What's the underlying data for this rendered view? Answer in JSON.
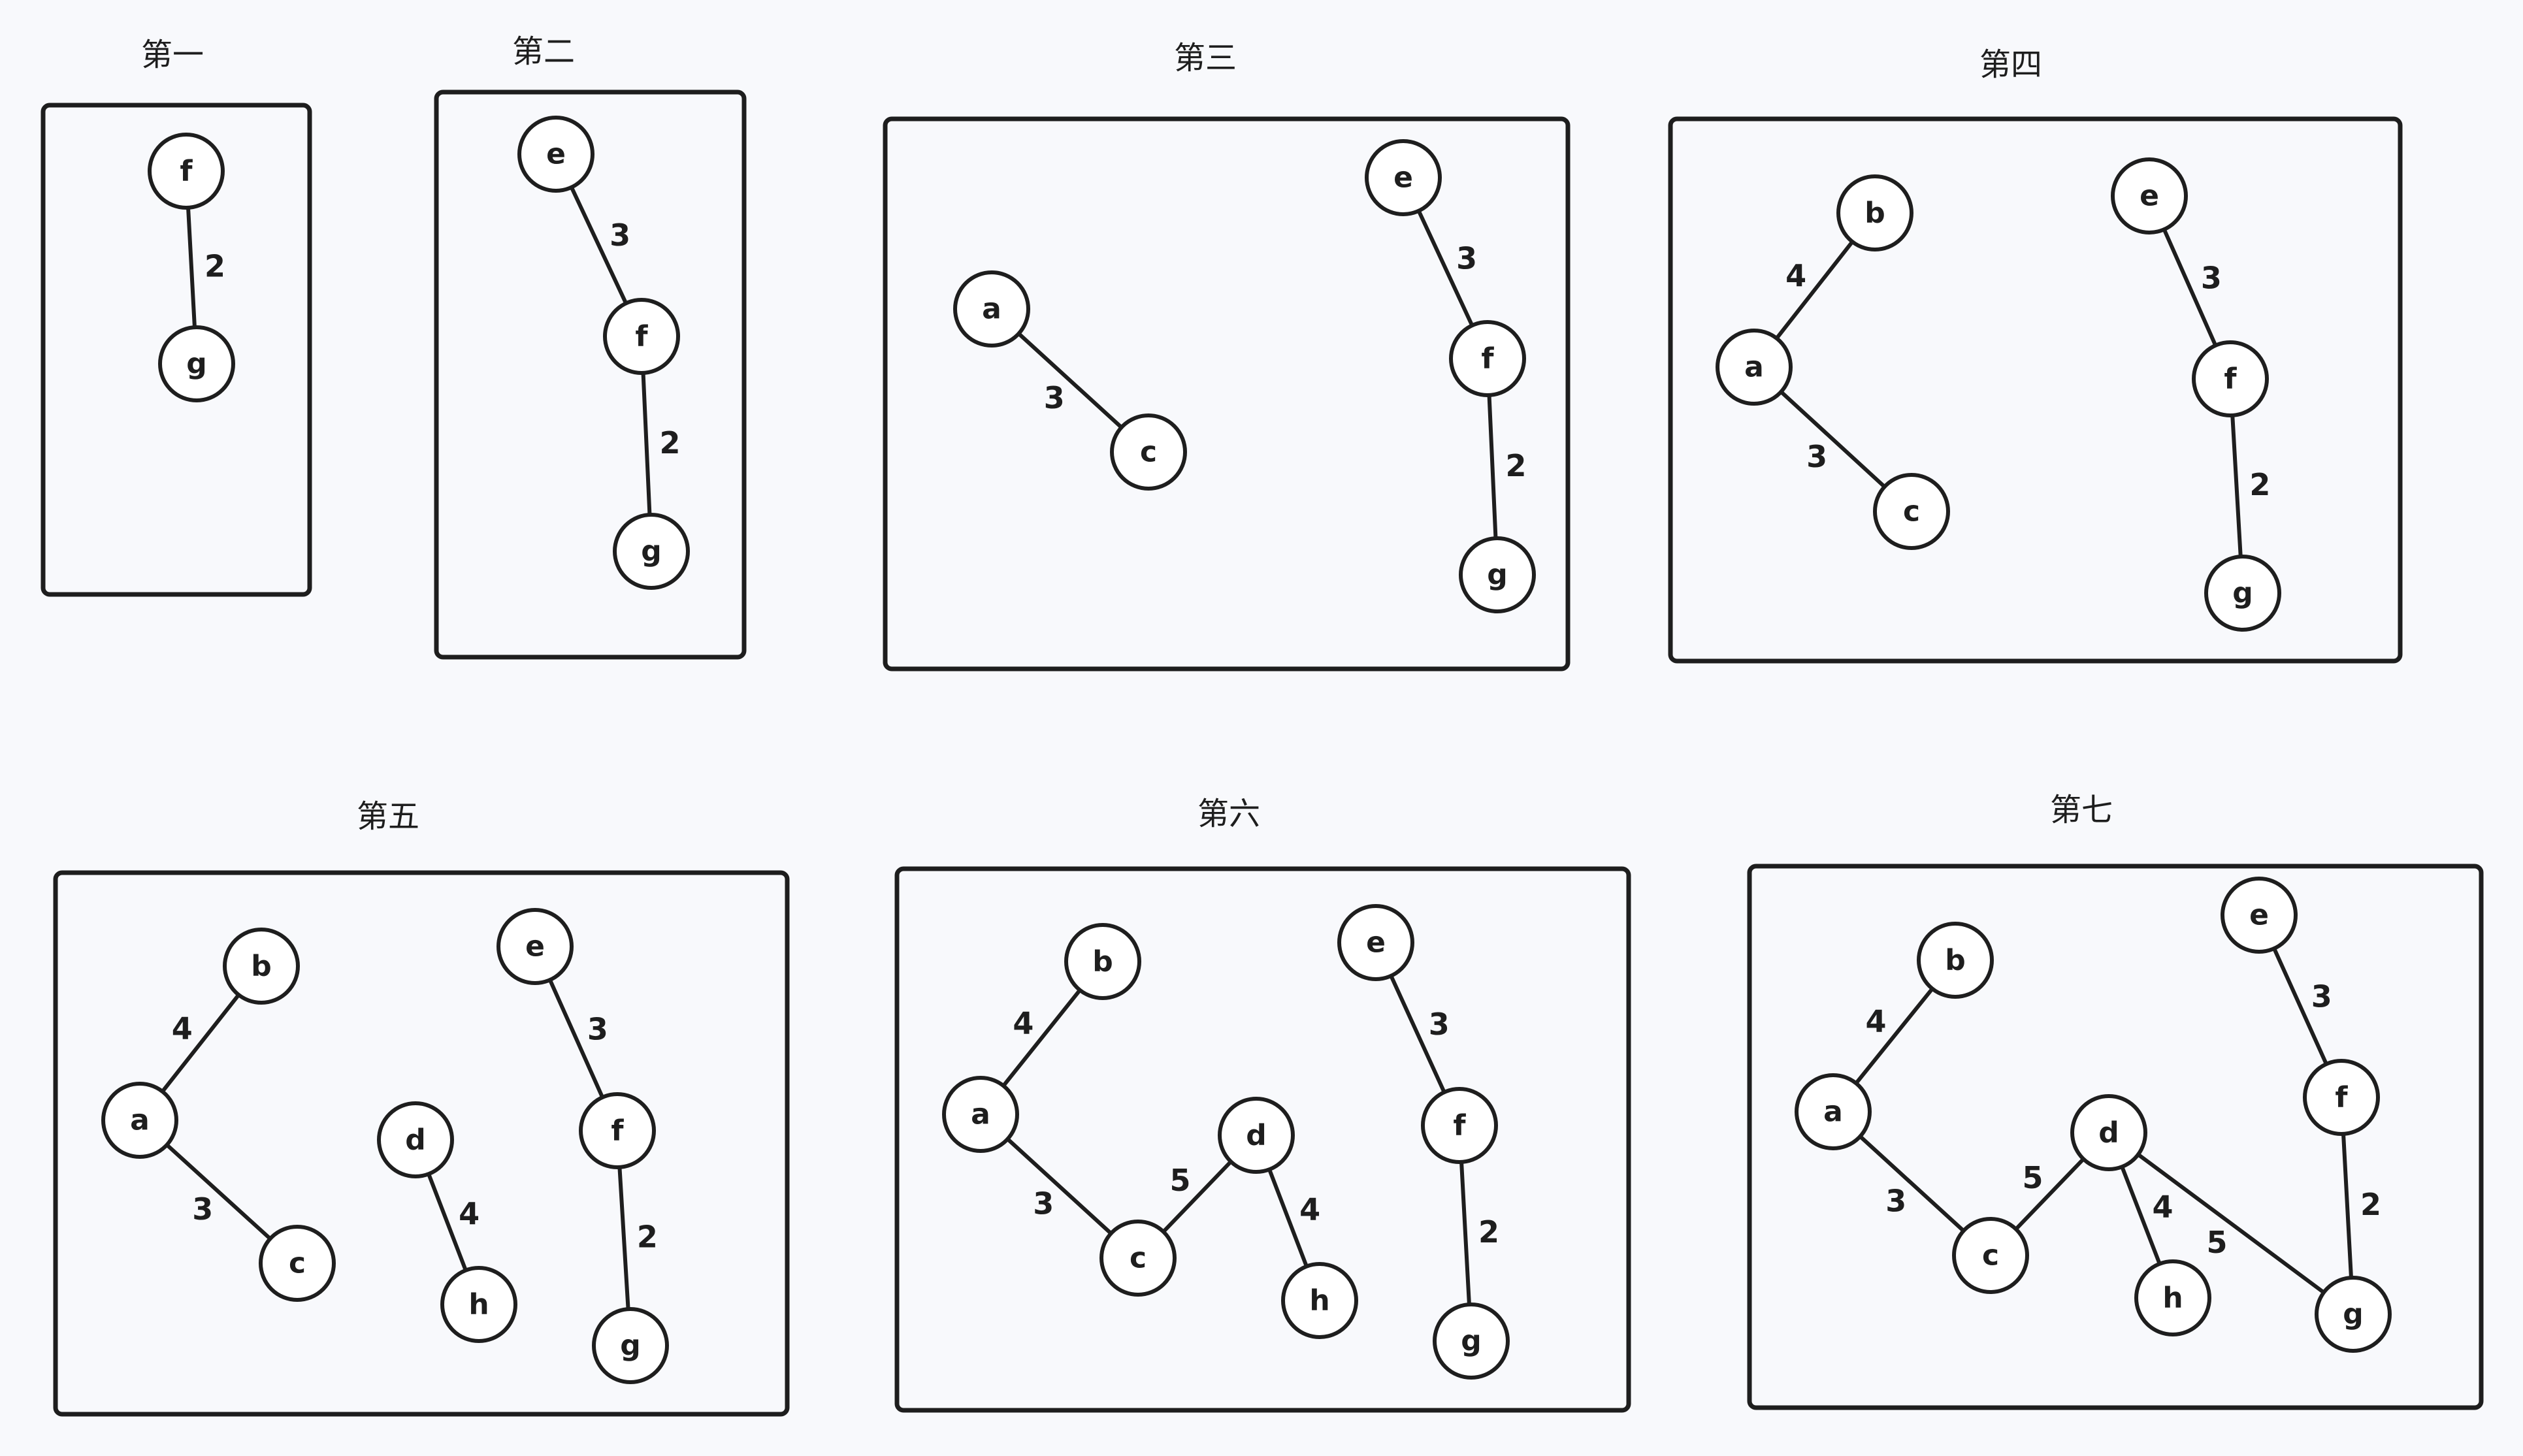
{
  "panels": [
    {
      "title": "第一",
      "nodes": [
        "f",
        "g"
      ],
      "edges": [
        {
          "from": "f",
          "to": "g",
          "weight": "2"
        }
      ]
    },
    {
      "title": "第二",
      "nodes": [
        "e",
        "f",
        "g"
      ],
      "edges": [
        {
          "from": "e",
          "to": "f",
          "weight": "3"
        },
        {
          "from": "f",
          "to": "g",
          "weight": "2"
        }
      ]
    },
    {
      "title": "第三",
      "nodes": [
        "a",
        "c",
        "e",
        "f",
        "g"
      ],
      "edges": [
        {
          "from": "a",
          "to": "c",
          "weight": "3"
        },
        {
          "from": "e",
          "to": "f",
          "weight": "3"
        },
        {
          "from": "f",
          "to": "g",
          "weight": "2"
        }
      ]
    },
    {
      "title": "第四",
      "nodes": [
        "b",
        "a",
        "c",
        "e",
        "f",
        "g"
      ],
      "edges": [
        {
          "from": "b",
          "to": "a",
          "weight": "4"
        },
        {
          "from": "a",
          "to": "c",
          "weight": "3"
        },
        {
          "from": "e",
          "to": "f",
          "weight": "3"
        },
        {
          "from": "f",
          "to": "g",
          "weight": "2"
        }
      ]
    },
    {
      "title": "第五",
      "nodes": [
        "b",
        "a",
        "c",
        "d",
        "h",
        "e",
        "f",
        "g"
      ],
      "edges": [
        {
          "from": "b",
          "to": "a",
          "weight": "4"
        },
        {
          "from": "a",
          "to": "c",
          "weight": "3"
        },
        {
          "from": "d",
          "to": "h",
          "weight": "4"
        },
        {
          "from": "e",
          "to": "f",
          "weight": "3"
        },
        {
          "from": "f",
          "to": "g",
          "weight": "2"
        }
      ]
    },
    {
      "title": "第六",
      "nodes": [
        "b",
        "a",
        "c",
        "d",
        "h",
        "e",
        "f",
        "g"
      ],
      "edges": [
        {
          "from": "b",
          "to": "a",
          "weight": "4"
        },
        {
          "from": "a",
          "to": "c",
          "weight": "3"
        },
        {
          "from": "c",
          "to": "d",
          "weight": "5"
        },
        {
          "from": "d",
          "to": "h",
          "weight": "4"
        },
        {
          "from": "e",
          "to": "f",
          "weight": "3"
        },
        {
          "from": "f",
          "to": "g",
          "weight": "2"
        }
      ]
    },
    {
      "title": "第七",
      "nodes": [
        "b",
        "a",
        "c",
        "d",
        "h",
        "e",
        "f",
        "g"
      ],
      "edges": [
        {
          "from": "b",
          "to": "a",
          "weight": "4"
        },
        {
          "from": "a",
          "to": "c",
          "weight": "3"
        },
        {
          "from": "c",
          "to": "d",
          "weight": "5"
        },
        {
          "from": "d",
          "to": "h",
          "weight": "4"
        },
        {
          "from": "d",
          "to": "g",
          "weight": "5"
        },
        {
          "from": "e",
          "to": "f",
          "weight": "3"
        },
        {
          "from": "f",
          "to": "g",
          "weight": "2"
        }
      ]
    }
  ]
}
